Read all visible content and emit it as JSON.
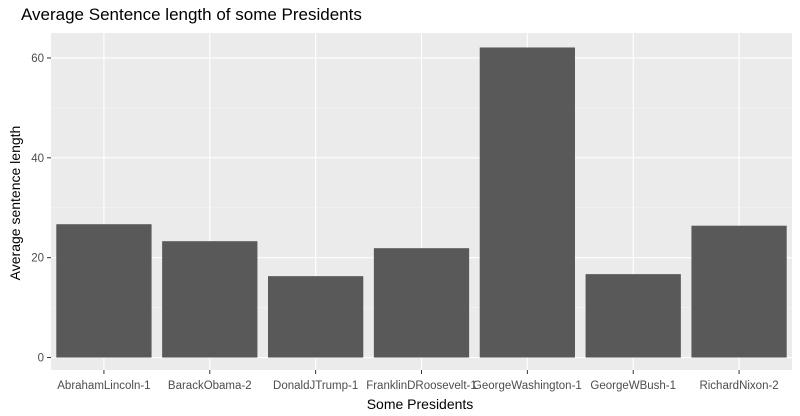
{
  "chart_data": {
    "type": "bar",
    "title": "Average Sentence length of some Presidents",
    "xlabel": "Some Presidents",
    "ylabel": "Average sentence length",
    "categories": [
      "AbrahamLincoln-1",
      "BarackObama-2",
      "DonaldJTrump-1",
      "FranklinDRoosevelt-1",
      "GeorgeWashington-1",
      "GeorgeWBush-1",
      "RichardNixon-2"
    ],
    "values": [
      26.7,
      23.3,
      16.3,
      21.9,
      62.1,
      16.7,
      26.4
    ],
    "yticks": [
      0,
      20,
      40,
      60
    ],
    "ylim": [
      -2.5,
      65.0
    ],
    "grid": true,
    "colors": {
      "bar": "#595959",
      "panel": "#ebebeb",
      "grid_major": "#ffffff",
      "grid_minor": "#f5f5f5",
      "tick_text": "#4d4d4d"
    }
  }
}
